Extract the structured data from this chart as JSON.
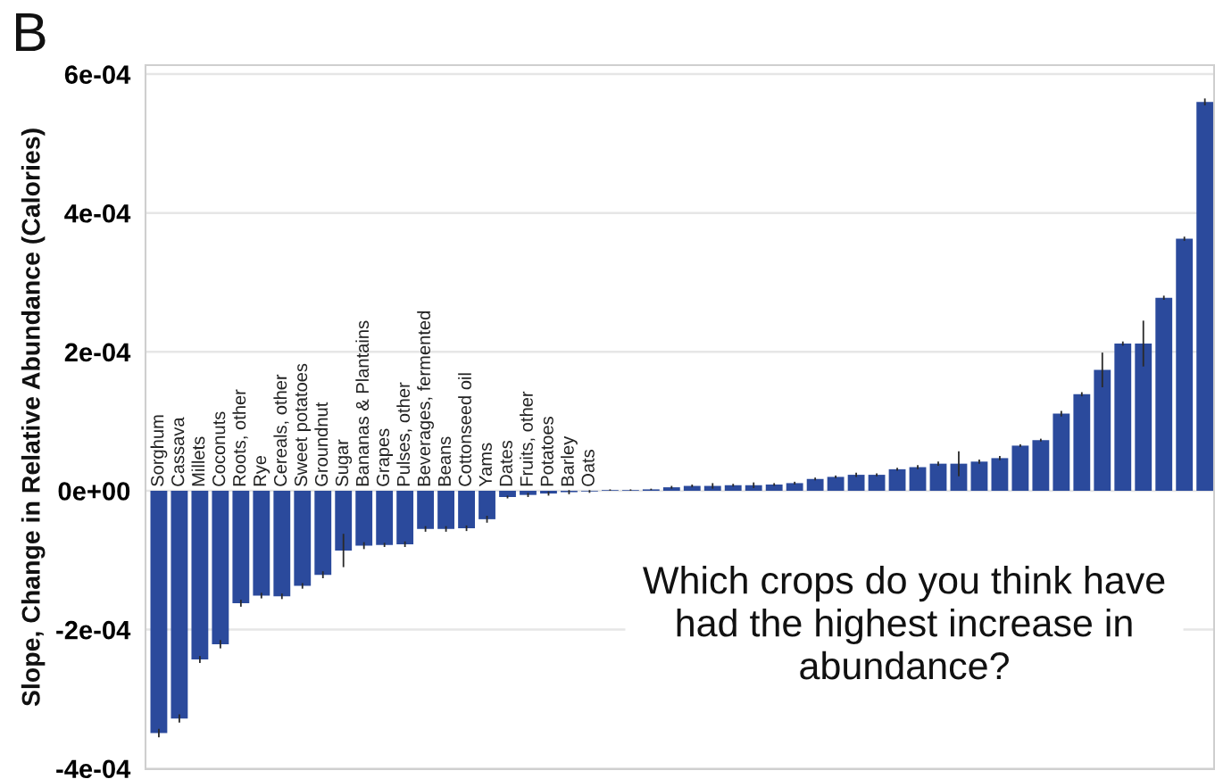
{
  "chart_data": {
    "type": "bar",
    "ylabel": "Slope, Change in Relative Abundance (Calories)",
    "annotations": [
      "B",
      "Which crops do you think have\nhad the highest increase in\nabundance?"
    ],
    "categories": [
      "Sorghum",
      "Cassava",
      "Millets",
      "Coconuts",
      "Roots, other",
      "Rye",
      "Cereals, other",
      "Sweet potatoes",
      "Groundnut",
      "Sugar",
      "Bananas & Plantains",
      "Grapes",
      "Pulses, other",
      "Beverages, fermented",
      "Beans",
      "Cottonseed oil",
      "Yams",
      "Dates",
      "Fruits, other",
      "Potatoes",
      "Barley",
      "Oats",
      null,
      null,
      null,
      null,
      null,
      null,
      null,
      null,
      null,
      null,
      null,
      null,
      null,
      null,
      null,
      null,
      null,
      null,
      null,
      null,
      null,
      null,
      null,
      null,
      null,
      null,
      null,
      null,
      null,
      null
    ],
    "values": [
      -0.000349,
      -0.000328,
      -0.000243,
      -0.000221,
      -0.000162,
      -0.000151,
      -0.000152,
      -0.000137,
      -0.000121,
      -8.6e-05,
      -7.9e-05,
      -7.8e-05,
      -7.7e-05,
      -5.5e-05,
      -5.5e-05,
      -5.4e-05,
      -4.1e-05,
      -9e-06,
      -6e-06,
      -4e-06,
      -2e-06,
      -1e-06,
      1e-06,
      1e-06,
      2e-06,
      5e-06,
      7e-06,
      7e-06,
      8e-06,
      8e-06,
      9e-06,
      1.1e-05,
      1.7e-05,
      2e-05,
      2.3e-05,
      2.3e-05,
      3.1e-05,
      3.4e-05,
      3.9e-05,
      3.9e-05,
      4.2e-05,
      4.7e-05,
      6.5e-05,
      7.3e-05,
      0.000111,
      0.000139,
      0.000174,
      0.000212,
      0.000212,
      0.000278,
      0.000363,
      0.00056
    ],
    "errors": [
      6e-06,
      6e-06,
      5e-06,
      6e-06,
      5e-06,
      4e-06,
      4e-06,
      4e-06,
      5e-06,
      2.4e-05,
      5e-06,
      3e-06,
      4e-06,
      4e-06,
      4e-06,
      4e-06,
      5e-06,
      2e-06,
      3e-06,
      3e-06,
      3e-06,
      2e-06,
      1e-06,
      1e-06,
      1e-06,
      2e-06,
      2e-06,
      4e-06,
      2e-06,
      4e-06,
      2e-06,
      2e-06,
      2e-06,
      2e-06,
      3e-06,
      2e-06,
      2e-06,
      3e-06,
      3e-06,
      1.8e-05,
      3e-06,
      3e-06,
      2e-06,
      2e-06,
      4e-06,
      3e-06,
      2.5e-05,
      3e-06,
      3.3e-05,
      3e-06,
      3e-06,
      5e-06
    ],
    "color": "#2b4a9c",
    "ylim": [
      -0.000401,
      0.000613
    ],
    "yticks": [
      {
        "value": -0.0004,
        "label": "-4e-04"
      },
      {
        "value": -0.0002,
        "label": "-2e-04"
      },
      {
        "value": 0,
        "label": "0e+00"
      },
      {
        "value": 0.0002,
        "label": "2e-04"
      },
      {
        "value": 0.0004,
        "label": "4e-04"
      },
      {
        "value": 0.0006,
        "label": "6e-04"
      }
    ],
    "grid": "y"
  }
}
